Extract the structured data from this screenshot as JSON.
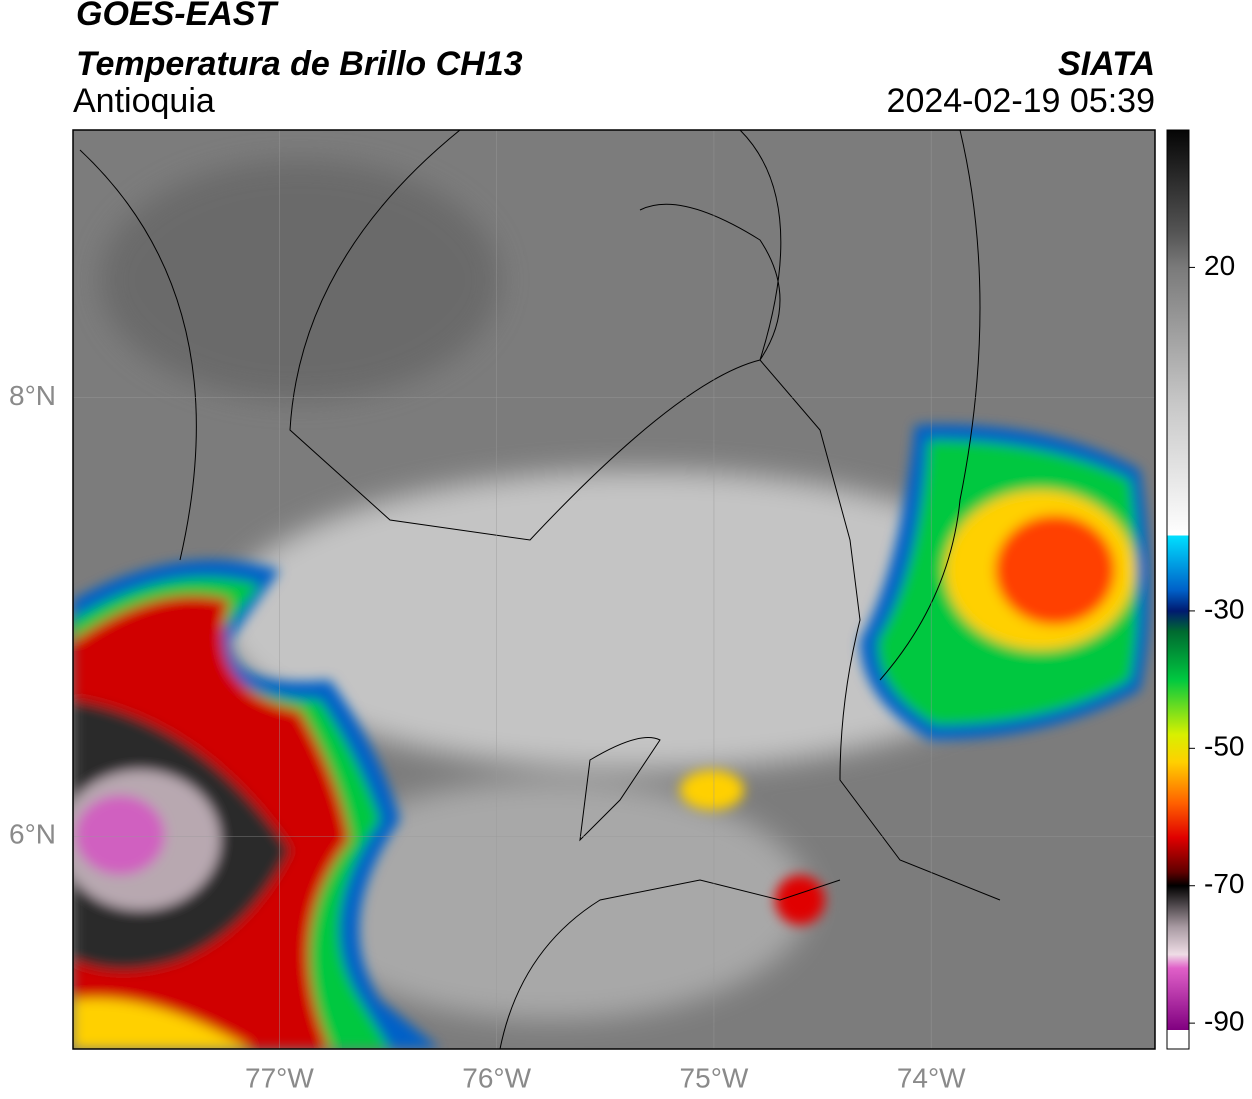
{
  "header": {
    "title": "GOES-EAST",
    "subtitle": "Temperatura de Brillo CH13",
    "region": "Antioquia",
    "source": "SIATA",
    "timestamp": "2024-02-19 05:39"
  },
  "map": {
    "lonlim": [
      -77.95,
      -72.97
    ],
    "latlim": [
      5.03,
      9.22
    ],
    "xticks": [
      {
        "value": -77,
        "label": "77°W"
      },
      {
        "value": -76,
        "label": "76°W"
      },
      {
        "value": -75,
        "label": "75°W"
      },
      {
        "value": -74,
        "label": "74°W"
      }
    ],
    "yticks": [
      {
        "value": 8,
        "label": "8°N"
      },
      {
        "value": 6,
        "label": "6°N"
      }
    ],
    "grid": true
  },
  "colorbar": {
    "lim": [
      -91,
      40
    ],
    "ticks": [
      20,
      -30,
      -50,
      -70,
      -90
    ],
    "stops": [
      [
        40,
        "#050505"
      ],
      [
        25,
        "#555555"
      ],
      [
        20,
        "#7a7a7a"
      ],
      [
        0,
        "#c8c8c8"
      ],
      [
        -19,
        "#ffffff"
      ],
      [
        -19,
        "#00e0ff"
      ],
      [
        -27,
        "#0060c8"
      ],
      [
        -30,
        "#001a70"
      ],
      [
        -33,
        "#006a30"
      ],
      [
        -40,
        "#00c840"
      ],
      [
        -48,
        "#d8f000"
      ],
      [
        -52,
        "#ffd000"
      ],
      [
        -58,
        "#ff6000"
      ],
      [
        -63,
        "#e00000"
      ],
      [
        -68,
        "#600000"
      ],
      [
        -70,
        "#000000"
      ],
      [
        -76,
        "#a89aa2"
      ],
      [
        -80,
        "#efdde6"
      ],
      [
        -82,
        "#e060c8"
      ],
      [
        -91,
        "#800080"
      ]
    ]
  }
}
